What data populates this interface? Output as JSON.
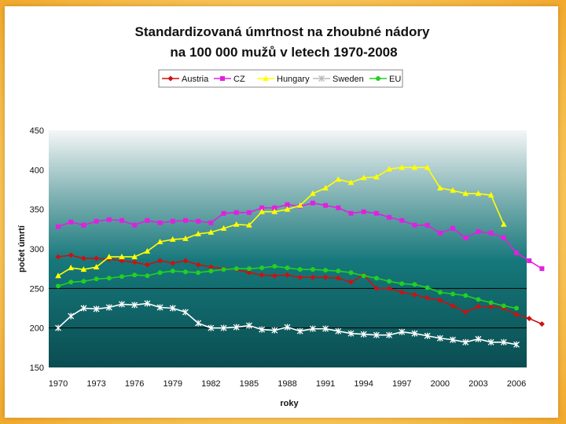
{
  "chart_data": {
    "type": "line",
    "title": "Standardizovaná úmrtnost na zhoubné nádory",
    "subtitle": "na 100 000 mužů v letech 1970-2008",
    "xlabel": "roky",
    "ylabel": "počet úmrtí",
    "ylim": [
      150,
      450
    ],
    "xlim": [
      1970,
      2008
    ],
    "yticks": [
      150,
      200,
      250,
      300,
      350,
      400,
      450
    ],
    "xticks": [
      1970,
      1973,
      1976,
      1979,
      1982,
      1985,
      1988,
      1991,
      1994,
      1997,
      2000,
      2003,
      2006
    ],
    "legend_position": "top",
    "series": [
      {
        "name": "Austria",
        "color": "#cc1111",
        "marker": "diamond",
        "start_year": 1970,
        "values": [
          290,
          292,
          288,
          288,
          287,
          285,
          283,
          280,
          285,
          282,
          285,
          280,
          277,
          275,
          274,
          270,
          267,
          266,
          267,
          264,
          264,
          264,
          263,
          258,
          267,
          250,
          250,
          245,
          242,
          238,
          235,
          228,
          220,
          227,
          227,
          225,
          217,
          212,
          205
        ]
      },
      {
        "name": "CZ",
        "color": "#e020e0",
        "marker": "square",
        "start_year": 1970,
        "values": [
          328,
          334,
          330,
          335,
          337,
          336,
          330,
          336,
          333,
          335,
          336,
          335,
          333,
          345,
          346,
          346,
          352,
          352,
          356,
          354,
          358,
          355,
          352,
          345,
          347,
          345,
          340,
          336,
          330,
          330,
          320,
          326,
          314,
          322,
          320,
          314,
          295,
          285,
          275
        ]
      },
      {
        "name": "Hungary",
        "color": "#ffff00",
        "marker": "triangle",
        "start_year": 1970,
        "values": [
          266,
          276,
          274,
          277,
          290,
          290,
          290,
          297,
          309,
          312,
          313,
          319,
          321,
          326,
          331,
          330,
          347,
          347,
          350,
          355,
          370,
          377,
          388,
          384,
          390,
          391,
          401,
          403,
          403,
          403,
          377,
          374,
          370,
          370,
          368,
          331
        ]
      },
      {
        "name": "Sweden",
        "color": "#ffffff",
        "marker": "star",
        "start_year": 1970,
        "values": [
          200,
          215,
          225,
          224,
          226,
          230,
          229,
          231,
          226,
          225,
          220,
          206,
          200,
          200,
          201,
          203,
          198,
          197,
          201,
          196,
          199,
          199,
          196,
          193,
          192,
          191,
          191,
          195,
          193,
          190,
          187,
          185,
          182,
          186,
          182,
          182,
          179
        ]
      },
      {
        "name": "EU",
        "color": "#22d022",
        "marker": "circle",
        "start_year": 1970,
        "values": [
          253,
          258,
          259,
          262,
          263,
          265,
          267,
          266,
          270,
          272,
          271,
          270,
          272,
          274,
          275,
          275,
          276,
          278,
          276,
          274,
          274,
          273,
          272,
          270,
          266,
          263,
          259,
          256,
          255,
          251,
          245,
          243,
          241,
          236,
          232,
          228,
          225
        ]
      }
    ]
  }
}
